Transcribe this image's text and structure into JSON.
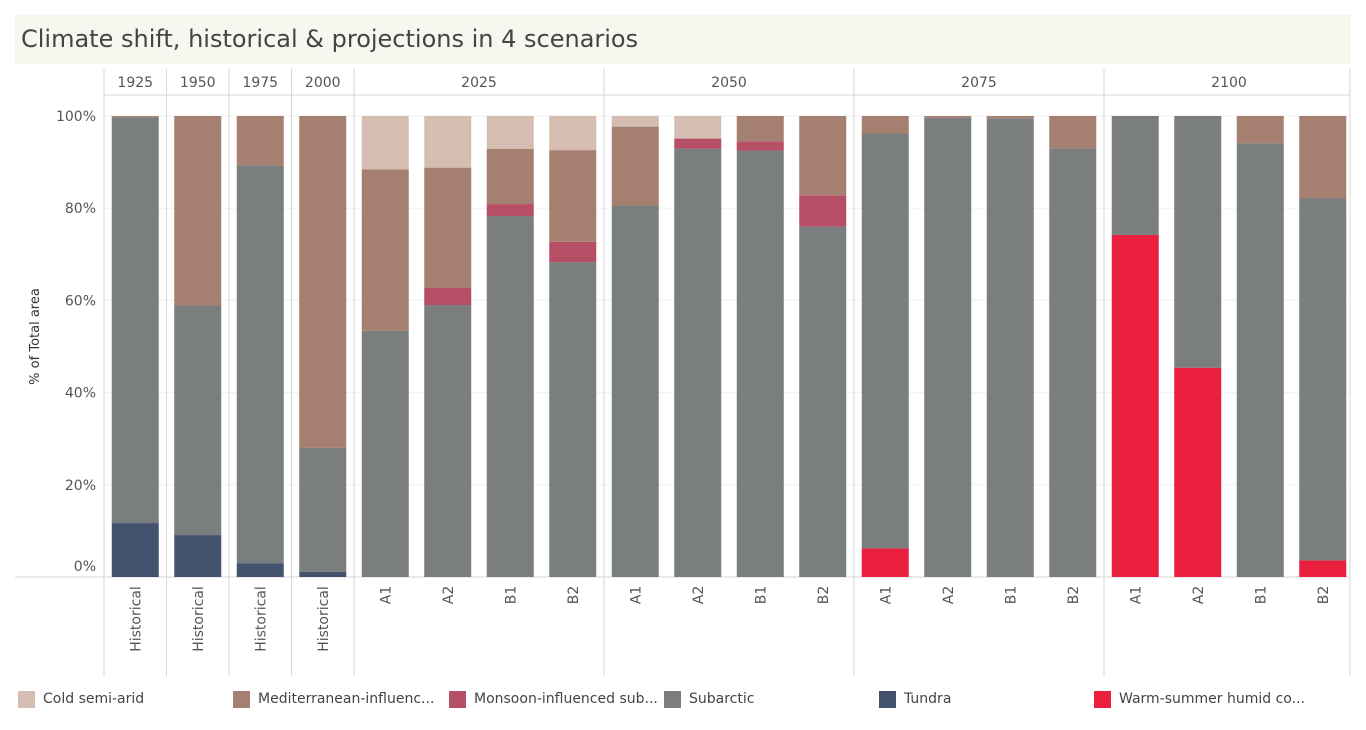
{
  "title": "Climate shift, historical & projections in 4 scenarios",
  "colors": {
    "Cold semi-arid": "#d5bdb1",
    "Mediterranean-influenced": "#a57f70",
    "Monsoon-influenced": "#b54f66",
    "Subarctic": "#7b7e7e",
    "Tundra": "#44536d",
    "Warm-summer humid": "#ea1e3d"
  },
  "legend": [
    {
      "label": "Cold semi-arid",
      "color_key": "Cold semi-arid"
    },
    {
      "label": "Mediterranean-influenc...",
      "color_key": "Mediterranean-influenced"
    },
    {
      "label": "Monsoon-influenced sub...",
      "color_key": "Monsoon-influenced"
    },
    {
      "label": "Subarctic",
      "color_key": "Subarctic"
    },
    {
      "label": "Tundra",
      "color_key": "Tundra"
    },
    {
      "label": "Warm-summer humid co...",
      "color_key": "Warm-summer humid"
    }
  ],
  "chart_data": {
    "type": "bar",
    "stacked": true,
    "ylabel": "% of Total area",
    "ylim": [
      0,
      100
    ],
    "yticks": [
      "0%",
      "20%",
      "40%",
      "60%",
      "80%",
      "100%"
    ],
    "stack_order": [
      "Warm-summer humid",
      "Tundra",
      "Subarctic",
      "Monsoon-influenced",
      "Mediterranean-influenced",
      "Cold semi-arid"
    ],
    "groups": [
      {
        "year": "1925",
        "bars": [
          {
            "scenario": "Historical",
            "values": {
              "Warm-summer humid": 0,
              "Tundra": 11.7,
              "Subarctic": 88.0,
              "Monsoon-influenced": 0,
              "Mediterranean-influenced": 0.3,
              "Cold semi-arid": 0
            }
          }
        ]
      },
      {
        "year": "1950",
        "bars": [
          {
            "scenario": "Historical",
            "values": {
              "Warm-summer humid": 0,
              "Tundra": 9.1,
              "Subarctic": 49.8,
              "Monsoon-influenced": 0,
              "Mediterranean-influenced": 41.1,
              "Cold semi-arid": 0
            }
          }
        ]
      },
      {
        "year": "1975",
        "bars": [
          {
            "scenario": "Historical",
            "values": {
              "Warm-summer humid": 0,
              "Tundra": 3.0,
              "Subarctic": 86.3,
              "Monsoon-influenced": 0,
              "Mediterranean-influenced": 10.7,
              "Cold semi-arid": 0
            }
          }
        ]
      },
      {
        "year": "2000",
        "bars": [
          {
            "scenario": "Historical",
            "values": {
              "Warm-summer humid": 0,
              "Tundra": 1.1,
              "Subarctic": 26.9,
              "Monsoon-influenced": 0,
              "Mediterranean-influenced": 72.0,
              "Cold semi-arid": 0
            }
          }
        ]
      },
      {
        "year": "2025",
        "bars": [
          {
            "scenario": "A1",
            "values": {
              "Warm-summer humid": 0,
              "Tundra": 0,
              "Subarctic": 53.4,
              "Monsoon-influenced": 0,
              "Mediterranean-influenced": 35.0,
              "Cold semi-arid": 11.6
            }
          },
          {
            "scenario": "A2",
            "values": {
              "Warm-summer humid": 0,
              "Tundra": 0,
              "Subarctic": 59.0,
              "Monsoon-influenced": 3.7,
              "Mediterranean-influenced": 26.1,
              "Cold semi-arid": 11.2
            }
          },
          {
            "scenario": "B1",
            "values": {
              "Warm-summer humid": 0,
              "Tundra": 0,
              "Subarctic": 78.3,
              "Monsoon-influenced": 2.6,
              "Mediterranean-influenced": 12.0,
              "Cold semi-arid": 7.1
            }
          },
          {
            "scenario": "B2",
            "values": {
              "Warm-summer humid": 0,
              "Tundra": 0,
              "Subarctic": 68.3,
              "Monsoon-influenced": 4.4,
              "Mediterranean-influenced": 19.9,
              "Cold semi-arid": 7.4
            }
          }
        ]
      },
      {
        "year": "2050",
        "bars": [
          {
            "scenario": "A1",
            "values": {
              "Warm-summer humid": 0,
              "Tundra": 0,
              "Subarctic": 80.6,
              "Monsoon-influenced": 0,
              "Mediterranean-influenced": 17.1,
              "Cold semi-arid": 2.3
            }
          },
          {
            "scenario": "A2",
            "values": {
              "Warm-summer humid": 0,
              "Tundra": 0,
              "Subarctic": 92.9,
              "Monsoon-influenced": 2.2,
              "Mediterranean-influenced": 0,
              "Cold semi-arid": 4.9
            }
          },
          {
            "scenario": "B1",
            "values": {
              "Warm-summer humid": 0,
              "Tundra": 0,
              "Subarctic": 92.5,
              "Monsoon-influenced": 2.0,
              "Mediterranean-influenced": 5.5,
              "Cold semi-arid": 0
            }
          },
          {
            "scenario": "B2",
            "values": {
              "Warm-summer humid": 0,
              "Tundra": 0,
              "Subarctic": 76.0,
              "Monsoon-influenced": 6.8,
              "Mediterranean-influenced": 17.2,
              "Cold semi-arid": 0
            }
          }
        ]
      },
      {
        "year": "2075",
        "bars": [
          {
            "scenario": "A1",
            "values": {
              "Warm-summer humid": 6.2,
              "Tundra": 0,
              "Subarctic": 90.0,
              "Monsoon-influenced": 0,
              "Mediterranean-influenced": 3.8,
              "Cold semi-arid": 0
            }
          },
          {
            "scenario": "A2",
            "values": {
              "Warm-summer humid": 0,
              "Tundra": 0,
              "Subarctic": 99.6,
              "Monsoon-influenced": 0,
              "Mediterranean-influenced": 0.4,
              "Cold semi-arid": 0
            }
          },
          {
            "scenario": "B1",
            "values": {
              "Warm-summer humid": 0,
              "Tundra": 0,
              "Subarctic": 99.5,
              "Monsoon-influenced": 0,
              "Mediterranean-influenced": 0.5,
              "Cold semi-arid": 0
            }
          },
          {
            "scenario": "B2",
            "values": {
              "Warm-summer humid": 0,
              "Tundra": 0,
              "Subarctic": 93.0,
              "Monsoon-influenced": 0,
              "Mediterranean-influenced": 7.0,
              "Cold semi-arid": 0
            }
          }
        ]
      },
      {
        "year": "2100",
        "bars": [
          {
            "scenario": "A1",
            "values": {
              "Warm-summer humid": 74.2,
              "Tundra": 0,
              "Subarctic": 25.8,
              "Monsoon-influenced": 0,
              "Mediterranean-influenced": 0,
              "Cold semi-arid": 0
            }
          },
          {
            "scenario": "A2",
            "values": {
              "Warm-summer humid": 45.4,
              "Tundra": 0,
              "Subarctic": 54.6,
              "Monsoon-influenced": 0,
              "Mediterranean-influenced": 0,
              "Cold semi-arid": 0
            }
          },
          {
            "scenario": "B1",
            "values": {
              "Warm-summer humid": 0,
              "Tundra": 0,
              "Subarctic": 94.1,
              "Monsoon-influenced": 0,
              "Mediterranean-influenced": 5.9,
              "Cold semi-arid": 0
            }
          },
          {
            "scenario": "B2",
            "values": {
              "Warm-summer humid": 3.6,
              "Tundra": 0,
              "Subarctic": 78.6,
              "Monsoon-influenced": 0,
              "Mediterranean-influenced": 17.8,
              "Cold semi-arid": 0
            }
          }
        ]
      }
    ]
  }
}
